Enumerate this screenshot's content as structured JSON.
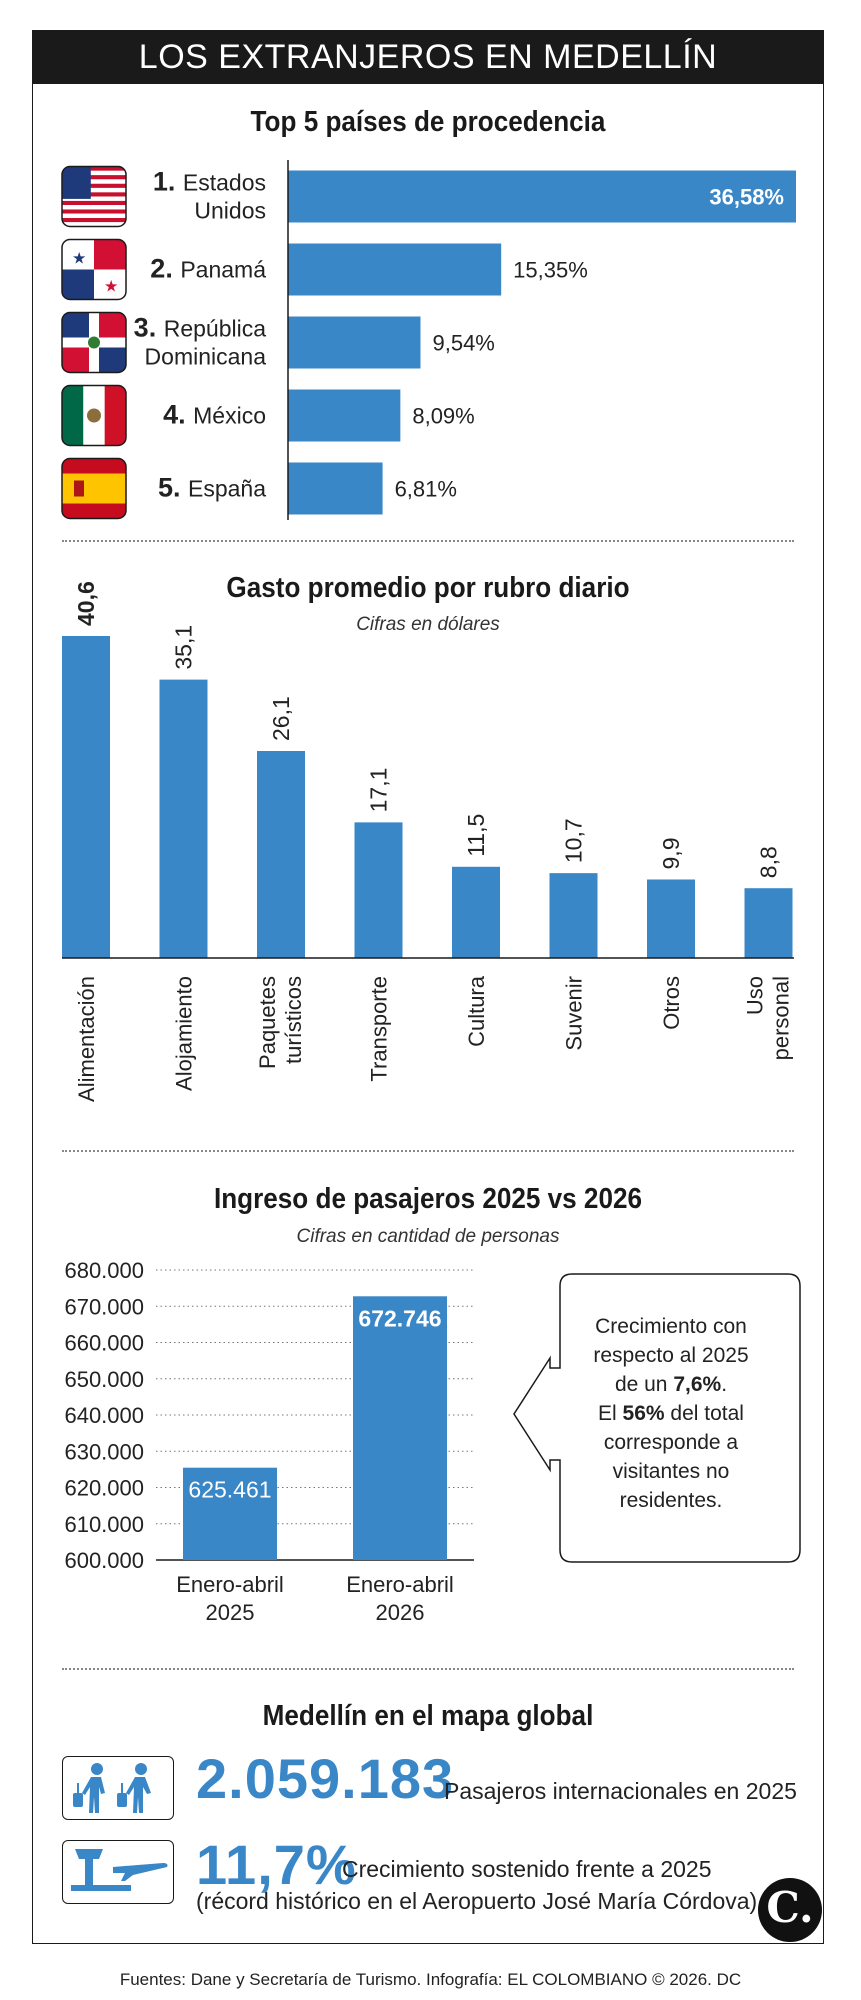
{
  "header": {
    "title": "LOS EXTRANJEROS EN MEDELLÍN"
  },
  "section1": {
    "title": "Top 5 países de procedencia"
  },
  "section2": {
    "title": "Gasto promedio por rubro diario",
    "subtitle": "Cifras en dólares"
  },
  "section3": {
    "title": "Ingreso de pasajeros 2025 vs 2026",
    "subtitle": "Cifras en cantidad de personas"
  },
  "section4": {
    "title": "Medellín en el mapa global"
  },
  "callout": {
    "line1": "Crecimiento con",
    "line2": "respecto al 2025",
    "line3_pre": "de un ",
    "line3_bold": "7,6%",
    "line3_post": ".",
    "line4_pre": "El ",
    "line4_bold": "56%",
    "line4_post": " del total",
    "line5": "corresponde a",
    "line6": "visitantes no",
    "line7": "residentes."
  },
  "stats": {
    "passengers_value": "2.059.183",
    "passengers_label": "Pasajeros internacionales en 2025",
    "growth_value": "11,7%",
    "growth_label": "Crecimiento sostenido frente a 2025",
    "growth_note": "(récord histórico en el Aeropuerto José María Córdova)"
  },
  "logo": {
    "text": "C."
  },
  "footer": {
    "text": "Fuentes: Dane y Secretaría de Turismo. Infografía: EL COLOMBIANO © 2026. DC"
  },
  "colors": {
    "bar": "#3a87c8",
    "dark": "#1a1a1a",
    "accent_text": "#3a87c8"
  },
  "icons": {
    "passengers": "travelers-with-luggage-icon",
    "airport": "control-tower-airplane-icon"
  },
  "chart_data": [
    {
      "type": "bar",
      "orientation": "horizontal",
      "title": "Top 5 países de procedencia",
      "categories": [
        {
          "rank": "1.",
          "lines": [
            "Estados",
            "Unidos"
          ],
          "flag": "usa-flag-icon"
        },
        {
          "rank": "2.",
          "lines": [
            "Panamá"
          ],
          "flag": "panama-flag-icon"
        },
        {
          "rank": "3.",
          "lines": [
            "República",
            "Dominicana"
          ],
          "flag": "dominican-republic-flag-icon"
        },
        {
          "rank": "4.",
          "lines": [
            "México"
          ],
          "flag": "mexico-flag-icon"
        },
        {
          "rank": "5.",
          "lines": [
            "España"
          ],
          "flag": "spain-flag-icon"
        }
      ],
      "values": [
        36.58,
        15.35,
        9.54,
        8.09,
        6.81
      ],
      "labels": [
        "36,58%",
        "15,35%",
        "9,54%",
        "8,09%",
        "6,81%"
      ],
      "xlim": [
        0,
        36.58
      ]
    },
    {
      "type": "bar",
      "title": "Gasto promedio por rubro diario",
      "subtitle": "Cifras en dólares",
      "categories": [
        [
          "Alimentación"
        ],
        [
          "Alojamiento"
        ],
        [
          "Paquetes",
          "turísticos"
        ],
        [
          "Transporte"
        ],
        [
          "Cultura"
        ],
        [
          "Suvenir"
        ],
        [
          "Otros"
        ],
        [
          "Uso",
          "personal"
        ]
      ],
      "values": [
        40.6,
        35.1,
        26.1,
        17.1,
        11.5,
        10.7,
        9.9,
        8.8
      ],
      "labels": [
        "40,6",
        "35,1",
        "26,1",
        "17,1",
        "11,5",
        "10,7",
        "9,9",
        "8,8"
      ],
      "ylim": [
        0,
        40.6
      ]
    },
    {
      "type": "bar",
      "title": "Ingreso de pasajeros 2025 vs 2026",
      "subtitle": "Cifras en cantidad de personas",
      "categories": [
        [
          "Enero-abril",
          "2025"
        ],
        [
          "Enero-abril",
          "2026"
        ]
      ],
      "values": [
        625461,
        672746
      ],
      "labels": [
        "625.461",
        "672.746"
      ],
      "ylim": [
        600000,
        680000
      ],
      "yticks": [
        "600.000",
        "610.000",
        "620.000",
        "630.000",
        "640.000",
        "650.000",
        "660.000",
        "670.000",
        "680.000"
      ],
      "grid": true
    }
  ]
}
